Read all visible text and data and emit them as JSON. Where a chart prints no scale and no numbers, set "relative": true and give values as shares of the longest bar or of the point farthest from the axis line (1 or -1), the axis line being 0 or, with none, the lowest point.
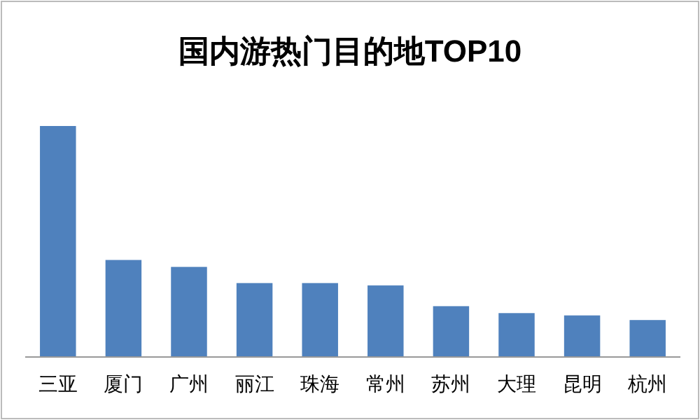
{
  "chart_data": {
    "type": "bar",
    "title": "国内游热门目的地TOP10",
    "relative": true,
    "categories": [
      "三亚",
      "厦门",
      "广州",
      "丽江",
      "珠海",
      "常州",
      "苏州",
      "大理",
      "昆明",
      "杭州"
    ],
    "values": [
      1,
      0.42,
      0.39,
      0.32,
      0.32,
      0.31,
      0.22,
      0.19,
      0.18,
      0.16
    ],
    "color": "#4f81bd"
  }
}
